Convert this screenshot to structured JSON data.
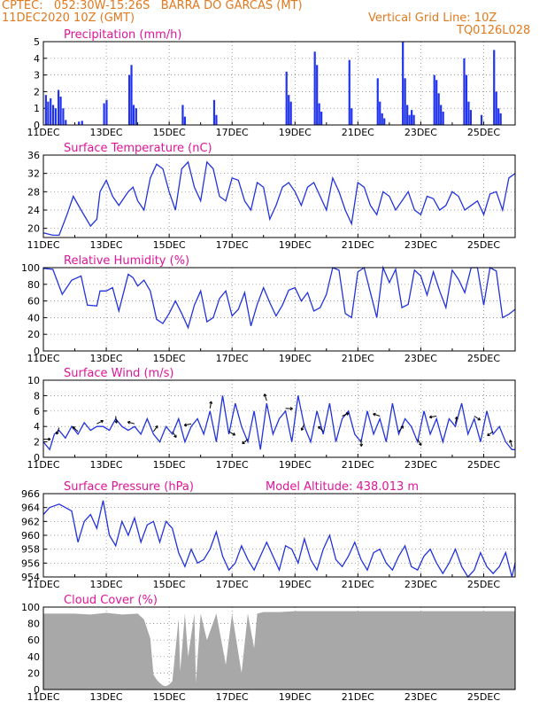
{
  "header": {
    "line1_left": "CPTEC:   052:30W-15:26S   BARRA DO GARCAS (MT)",
    "line2_left": "11DEC2020 10Z (GMT)",
    "line2_right": "Vertical Grid Line: 10Z",
    "line3_right": "TQ0126L028"
  },
  "colors": {
    "header": "#e07a1f",
    "title": "#e0149a",
    "line": "#2233dd",
    "bar": "#2233ee",
    "cloud": "#a8a8a8"
  },
  "chart_data": [
    {
      "type": "bar",
      "title": "Precipitation (mm/h)",
      "xticks": [
        "11DEC",
        "13DEC",
        "15DEC",
        "17DEC",
        "19DEC",
        "21DEC",
        "23DEC",
        "25DEC"
      ],
      "x_range_days": [
        0,
        15
      ],
      "ylim": [
        0,
        5
      ],
      "yticks": [
        "0",
        "1",
        "2",
        "3",
        "4",
        "5"
      ],
      "events": [
        {
          "day": 0.05,
          "value": 1.8
        },
        {
          "day": 0.12,
          "value": 1.4
        },
        {
          "day": 0.2,
          "value": 1.6
        },
        {
          "day": 0.28,
          "value": 1.2
        },
        {
          "day": 0.36,
          "value": 1.0
        },
        {
          "day": 0.45,
          "value": 2.1
        },
        {
          "day": 0.52,
          "value": 1.7
        },
        {
          "day": 0.6,
          "value": 1.0
        },
        {
          "day": 0.68,
          "value": 0.3
        },
        {
          "day": 1.1,
          "value": 0.2
        },
        {
          "day": 1.2,
          "value": 0.25
        },
        {
          "day": 1.9,
          "value": 1.3
        },
        {
          "day": 1.98,
          "value": 1.5
        },
        {
          "day": 2.7,
          "value": 3.0
        },
        {
          "day": 2.77,
          "value": 3.6
        },
        {
          "day": 2.84,
          "value": 1.2
        },
        {
          "day": 2.92,
          "value": 1.0
        },
        {
          "day": 4.4,
          "value": 1.2
        },
        {
          "day": 4.47,
          "value": 0.5
        },
        {
          "day": 5.4,
          "value": 1.5
        },
        {
          "day": 5.47,
          "value": 0.6
        },
        {
          "day": 7.7,
          "value": 3.2
        },
        {
          "day": 7.77,
          "value": 1.8
        },
        {
          "day": 7.84,
          "value": 1.4
        },
        {
          "day": 8.6,
          "value": 4.4
        },
        {
          "day": 8.67,
          "value": 3.6
        },
        {
          "day": 8.74,
          "value": 1.3
        },
        {
          "day": 8.81,
          "value": 0.8
        },
        {
          "day": 9.7,
          "value": 3.9
        },
        {
          "day": 9.77,
          "value": 1.0
        },
        {
          "day": 10.6,
          "value": 2.8
        },
        {
          "day": 10.67,
          "value": 1.4
        },
        {
          "day": 10.74,
          "value": 0.7
        },
        {
          "day": 10.81,
          "value": 0.4
        },
        {
          "day": 11.4,
          "value": 5.0
        },
        {
          "day": 11.47,
          "value": 2.8
        },
        {
          "day": 11.54,
          "value": 1.2
        },
        {
          "day": 11.61,
          "value": 0.6
        },
        {
          "day": 11.68,
          "value": 0.9
        },
        {
          "day": 11.75,
          "value": 0.6
        },
        {
          "day": 12.4,
          "value": 3.0
        },
        {
          "day": 12.47,
          "value": 2.7
        },
        {
          "day": 12.54,
          "value": 1.9
        },
        {
          "day": 12.61,
          "value": 1.2
        },
        {
          "day": 12.68,
          "value": 0.8
        },
        {
          "day": 13.35,
          "value": 4.0
        },
        {
          "day": 13.42,
          "value": 3.0
        },
        {
          "day": 13.49,
          "value": 1.4
        },
        {
          "day": 13.56,
          "value": 0.9
        },
        {
          "day": 13.9,
          "value": 0.6
        },
        {
          "day": 14.3,
          "value": 4.5
        },
        {
          "day": 14.37,
          "value": 2.0
        },
        {
          "day": 14.44,
          "value": 1.0
        },
        {
          "day": 14.51,
          "value": 0.7
        }
      ]
    },
    {
      "type": "line",
      "title": "Surface Temperature (nC)",
      "xticks": [
        "11DEC",
        "13DEC",
        "15DEC",
        "17DEC",
        "19DEC",
        "21DEC",
        "23DEC",
        "25DEC"
      ],
      "x_range_days": [
        0,
        15
      ],
      "ylim": [
        18,
        36
      ],
      "yticks": [
        "20",
        "24",
        "28",
        "32",
        "36"
      ],
      "x": [
        0,
        0.3,
        0.5,
        0.75,
        0.95,
        1.2,
        1.5,
        1.7,
        1.8,
        2.0,
        2.2,
        2.4,
        2.7,
        2.85,
        3.0,
        3.2,
        3.4,
        3.6,
        3.8,
        4.0,
        4.2,
        4.4,
        4.6,
        4.8,
        5.0,
        5.2,
        5.4,
        5.6,
        5.8,
        6.0,
        6.2,
        6.4,
        6.6,
        6.8,
        7.0,
        7.2,
        7.4,
        7.6,
        7.8,
        8.0,
        8.2,
        8.4,
        8.6,
        8.8,
        9.0,
        9.2,
        9.4,
        9.6,
        9.8,
        10.0,
        10.2,
        10.4,
        10.6,
        10.8,
        11.0,
        11.2,
        11.4,
        11.6,
        11.8,
        12.0,
        12.2,
        12.4,
        12.6,
        12.8,
        13.0,
        13.2,
        13.4,
        13.6,
        13.8,
        14.0,
        14.2,
        14.4,
        14.6,
        14.8,
        15.0
      ],
      "values": [
        19,
        18.5,
        18.5,
        23,
        27,
        24,
        20.5,
        22,
        28,
        30.5,
        27,
        25,
        28,
        29,
        26,
        24,
        31,
        34,
        33,
        28,
        24,
        33,
        34.5,
        29,
        26,
        34.5,
        33,
        27,
        26,
        31,
        30.5,
        26,
        24,
        30,
        29,
        22,
        25,
        29,
        30,
        28,
        25,
        29,
        30,
        27,
        24,
        31,
        28,
        24,
        21,
        30,
        29,
        25,
        23,
        28,
        27,
        24,
        26,
        28,
        24,
        23,
        27,
        26.5,
        24,
        25,
        28,
        27,
        24,
        25,
        26,
        23,
        27.5,
        28,
        24,
        31,
        32
      ]
    },
    {
      "type": "line",
      "title": "Relative Humidity (%)",
      "xticks": [
        "11DEC",
        "13DEC",
        "15DEC",
        "17DEC",
        "19DEC",
        "21DEC",
        "23DEC",
        "25DEC"
      ],
      "x_range_days": [
        0,
        15
      ],
      "ylim": [
        0,
        100
      ],
      "yticks": [
        "0",
        "20",
        "40",
        "60",
        "80",
        "100"
      ],
      "x": [
        0,
        0.3,
        0.6,
        0.9,
        1.2,
        1.4,
        1.7,
        1.8,
        2.0,
        2.2,
        2.4,
        2.7,
        2.85,
        3.0,
        3.2,
        3.4,
        3.6,
        3.8,
        4.0,
        4.2,
        4.4,
        4.6,
        4.8,
        5.0,
        5.2,
        5.4,
        5.6,
        5.8,
        6.0,
        6.2,
        6.4,
        6.6,
        6.8,
        7.0,
        7.2,
        7.4,
        7.6,
        7.8,
        8.0,
        8.2,
        8.4,
        8.6,
        8.8,
        9.0,
        9.2,
        9.4,
        9.6,
        9.8,
        10.0,
        10.2,
        10.4,
        10.6,
        10.8,
        11.0,
        11.2,
        11.4,
        11.6,
        11.8,
        12.0,
        12.2,
        12.4,
        12.6,
        12.8,
        13.0,
        13.2,
        13.4,
        13.6,
        13.8,
        14.0,
        14.2,
        14.4,
        14.6,
        14.8,
        15.0
      ],
      "values": [
        99,
        98,
        68,
        85,
        90,
        55,
        54,
        72,
        72,
        76,
        48,
        92,
        88,
        78,
        85,
        72,
        38,
        33,
        45,
        60,
        45,
        28,
        55,
        72,
        35,
        40,
        63,
        72,
        42,
        50,
        70,
        30,
        56,
        76,
        58,
        42,
        55,
        73,
        76,
        60,
        70,
        48,
        52,
        68,
        100,
        97,
        45,
        40,
        95,
        100,
        70,
        40,
        100,
        82,
        98,
        52,
        56,
        97,
        90,
        67,
        95,
        72,
        52,
        97,
        86,
        70,
        100,
        100,
        55,
        100,
        96,
        40,
        44,
        50
      ]
    },
    {
      "type": "line",
      "title": "Surface Wind (m/s)",
      "xticks": [
        "11DEC",
        "13DEC",
        "15DEC",
        "17DEC",
        "19DEC",
        "21DEC",
        "23DEC",
        "25DEC"
      ],
      "x_range_days": [
        0,
        15
      ],
      "ylim": [
        0,
        10
      ],
      "yticks": [
        "0",
        "2",
        "4",
        "6",
        "8",
        "10"
      ],
      "x": [
        0,
        0.2,
        0.35,
        0.5,
        0.7,
        0.9,
        1.1,
        1.3,
        1.5,
        1.7,
        1.9,
        2.1,
        2.3,
        2.5,
        2.7,
        2.9,
        3.1,
        3.3,
        3.5,
        3.7,
        3.9,
        4.1,
        4.3,
        4.5,
        4.7,
        4.9,
        5.1,
        5.3,
        5.5,
        5.7,
        5.9,
        6.1,
        6.3,
        6.5,
        6.7,
        6.9,
        7.1,
        7.3,
        7.5,
        7.7,
        7.9,
        8.1,
        8.3,
        8.5,
        8.7,
        8.9,
        9.1,
        9.3,
        9.5,
        9.7,
        9.9,
        10.1,
        10.3,
        10.5,
        10.7,
        10.9,
        11.1,
        11.3,
        11.5,
        11.7,
        11.9,
        12.1,
        12.3,
        12.5,
        12.7,
        12.9,
        13.1,
        13.3,
        13.5,
        13.7,
        13.9,
        14.1,
        14.3,
        14.5,
        14.7,
        14.9,
        15.0
      ],
      "values": [
        2,
        1,
        3,
        3.5,
        2.5,
        4,
        3,
        4.5,
        3.5,
        4,
        4,
        3.5,
        5,
        4,
        3.5,
        4,
        3,
        5,
        3,
        2,
        4,
        3,
        5,
        2,
        4,
        5,
        3,
        6,
        2,
        8,
        3,
        7,
        4,
        2,
        6,
        1,
        7,
        3,
        5,
        6,
        2,
        8,
        4,
        2,
        6,
        3,
        7,
        2,
        5,
        6,
        3,
        2,
        6,
        3,
        5,
        2,
        7,
        3,
        5,
        4,
        2,
        6,
        3,
        5,
        2,
        5,
        4,
        7,
        3,
        5,
        2,
        6,
        3,
        4,
        2,
        1,
        1
      ]
    },
    {
      "type": "line",
      "title": "Surface Pressure (hPa)",
      "annotation": "Model Altitude: 438.013 m",
      "xticks": [
        "11DEC",
        "13DEC",
        "15DEC",
        "17DEC",
        "19DEC",
        "21DEC",
        "23DEC",
        "25DEC"
      ],
      "x_range_days": [
        0,
        15
      ],
      "ylim": [
        954,
        966
      ],
      "yticks": [
        "954",
        "956",
        "958",
        "960",
        "962",
        "964",
        "966"
      ],
      "x": [
        0,
        0.2,
        0.5,
        0.7,
        0.9,
        1.1,
        1.3,
        1.5,
        1.7,
        1.9,
        2.1,
        2.3,
        2.5,
        2.7,
        2.9,
        3.1,
        3.3,
        3.5,
        3.7,
        3.9,
        4.1,
        4.3,
        4.5,
        4.7,
        4.9,
        5.1,
        5.3,
        5.5,
        5.7,
        5.9,
        6.1,
        6.3,
        6.5,
        6.7,
        6.9,
        7.1,
        7.3,
        7.5,
        7.7,
        7.9,
        8.1,
        8.3,
        8.5,
        8.7,
        8.9,
        9.1,
        9.3,
        9.5,
        9.7,
        9.9,
        10.1,
        10.3,
        10.5,
        10.7,
        10.9,
        11.1,
        11.3,
        11.5,
        11.7,
        11.9,
        12.1,
        12.3,
        12.5,
        12.7,
        12.9,
        13.1,
        13.3,
        13.5,
        13.7,
        13.9,
        14.1,
        14.3,
        14.5,
        14.7,
        14.9,
        15.0
      ],
      "values": [
        963,
        964,
        964.5,
        964,
        963.5,
        959,
        962,
        963,
        961,
        965,
        960,
        958.5,
        962,
        960,
        962.5,
        959,
        961.5,
        962,
        959,
        962,
        961,
        957.5,
        955.5,
        958,
        956,
        956.5,
        958,
        960.5,
        957,
        955,
        956,
        958.5,
        956.5,
        955,
        957,
        959,
        957,
        955,
        958.5,
        958,
        956,
        959.5,
        956.5,
        955,
        958,
        960,
        956.5,
        955.5,
        957,
        959,
        956.5,
        955,
        957.5,
        958,
        956,
        955,
        957,
        958.5,
        955.5,
        955,
        957,
        958,
        956,
        954.5,
        956,
        958,
        955.5,
        954,
        955,
        957.5,
        955.5,
        954.5,
        955.5,
        957.5,
        954,
        956
      ]
    },
    {
      "type": "area",
      "title": "Cloud Cover (%)",
      "xticks": [
        "11DEC",
        "13DEC",
        "15DEC",
        "17DEC",
        "19DEC",
        "21DEC",
        "23DEC",
        "25DEC"
      ],
      "x_range_days": [
        0,
        15
      ],
      "ylim": [
        0,
        100
      ],
      "yticks": [
        "0",
        "20",
        "40",
        "60",
        "80",
        "100"
      ],
      "x": [
        0,
        0.5,
        1,
        1.5,
        2,
        2.5,
        3,
        3.2,
        3.4,
        3.5,
        3.6,
        3.7,
        3.8,
        3.9,
        4.0,
        4.1,
        4.3,
        4.35,
        4.5,
        4.6,
        4.8,
        4.85,
        5,
        5.2,
        5.5,
        5.8,
        6,
        6.3,
        6.5,
        6.7,
        6.8,
        7,
        7.5,
        8,
        9,
        10,
        11,
        12,
        13,
        14,
        15
      ],
      "values": [
        92,
        92,
        92,
        91,
        93,
        91,
        92,
        85,
        62,
        18,
        12,
        8,
        5,
        4,
        6,
        10,
        86,
        22,
        92,
        40,
        92,
        8,
        92,
        60,
        92,
        30,
        92,
        20,
        92,
        50,
        92,
        94,
        94,
        95,
        95,
        95,
        95,
        95,
        95,
        95,
        95
      ]
    }
  ]
}
